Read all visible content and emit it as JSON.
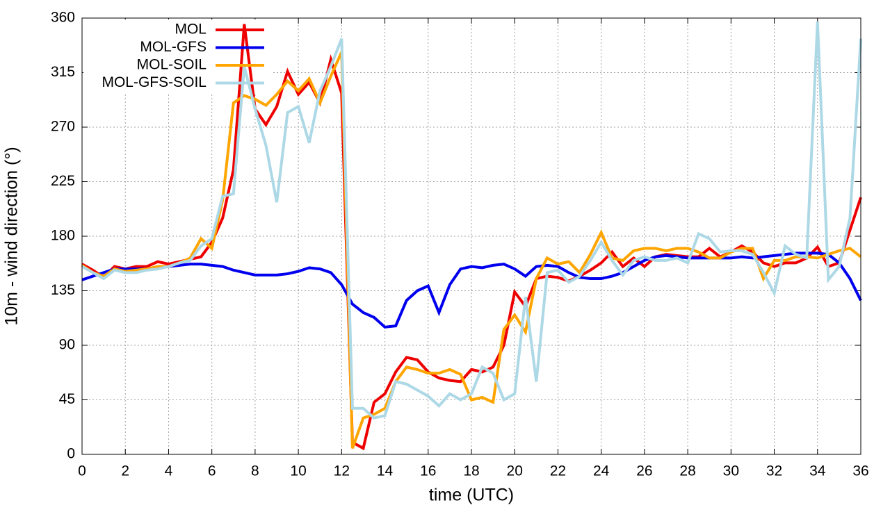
{
  "chart_data": {
    "type": "line",
    "xlabel": "time (UTC)",
    "ylabel": "10m - wind direction (°)",
    "x": [
      0,
      0.5,
      1,
      1.5,
      2,
      2.5,
      3,
      3.5,
      4,
      4.5,
      5,
      5.5,
      6,
      6.5,
      7,
      7.5,
      8,
      8.5,
      9,
      9.5,
      10,
      10.5,
      11,
      11.5,
      12,
      12.5,
      13,
      13.5,
      14,
      14.5,
      15,
      15.5,
      16,
      16.5,
      17,
      17.5,
      18,
      18.5,
      19,
      19.5,
      20,
      20.5,
      21,
      21.5,
      22,
      22.5,
      23,
      23.5,
      24,
      24.5,
      25,
      25.5,
      26,
      26.5,
      27,
      27.5,
      28,
      28.5,
      29,
      29.5,
      30,
      30.5,
      31,
      31.5,
      32,
      32.5,
      33,
      33.5,
      34,
      34.5,
      35,
      35.5,
      36
    ],
    "series": [
      {
        "name": "MOL",
        "color": "#ee0000",
        "values": [
          157,
          152,
          146,
          155,
          153,
          155,
          155,
          159,
          157,
          159,
          161,
          163,
          175,
          195,
          235,
          355,
          285,
          272,
          287,
          316,
          297,
          307,
          290,
          326,
          298,
          10,
          5,
          43,
          50,
          68,
          80,
          78,
          68,
          63,
          61,
          60,
          70,
          68,
          72,
          90,
          134,
          122,
          145,
          147,
          146,
          143,
          147,
          152,
          158,
          167,
          155,
          162,
          155,
          163,
          165,
          164,
          163,
          163,
          170,
          163,
          167,
          172,
          167,
          158,
          155,
          158,
          158,
          162,
          171,
          155,
          158,
          185,
          212
        ]
      },
      {
        "name": "MOL-GFS",
        "color": "#0000ee",
        "values": [
          144,
          147,
          150,
          153,
          153,
          153,
          153,
          154,
          155,
          156,
          157,
          157,
          156,
          155,
          152,
          150,
          148,
          148,
          148,
          149,
          151,
          154,
          153,
          150,
          140,
          124,
          117,
          113,
          105,
          106,
          127,
          135,
          139,
          117,
          140,
          153,
          155,
          154,
          156,
          157,
          153,
          147,
          155,
          156,
          155,
          150,
          146,
          145,
          145,
          147,
          150,
          155,
          160,
          163,
          164,
          163,
          162,
          162,
          162,
          162,
          162,
          163,
          162,
          163,
          164,
          165,
          166,
          166,
          166,
          165,
          158,
          145,
          127
        ]
      },
      {
        "name": "MOL-SOIL",
        "color": "#ffa500",
        "values": [
          156,
          150,
          147,
          153,
          151,
          152,
          153,
          155,
          155,
          158,
          162,
          178,
          170,
          210,
          290,
          296,
          293,
          288,
          297,
          308,
          300,
          310,
          290,
          312,
          332,
          5,
          30,
          33,
          38,
          60,
          72,
          70,
          67,
          67,
          70,
          66,
          45,
          47,
          43,
          103,
          115,
          101,
          145,
          162,
          157,
          159,
          150,
          165,
          183,
          162,
          160,
          168,
          170,
          170,
          168,
          170,
          170,
          167,
          162,
          162,
          167,
          170,
          170,
          145,
          160,
          160,
          163,
          163,
          162,
          165,
          168,
          170,
          163
        ]
      },
      {
        "name": "MOL-GFS-SOIL",
        "color": "#add8e6",
        "values": [
          155,
          150,
          145,
          152,
          150,
          150,
          152,
          153,
          155,
          158,
          160,
          172,
          178,
          213,
          215,
          320,
          285,
          255,
          208,
          282,
          287,
          257,
          300,
          320,
          343,
          38,
          38,
          30,
          32,
          60,
          58,
          53,
          48,
          40,
          50,
          45,
          50,
          72,
          67,
          45,
          50,
          130,
          60,
          150,
          152,
          142,
          147,
          160,
          175,
          160,
          148,
          160,
          163,
          160,
          160,
          162,
          158,
          182,
          178,
          167,
          168,
          168,
          165,
          150,
          133,
          172,
          165,
          162,
          357,
          144,
          155,
          195,
          343
        ]
      }
    ],
    "xlim": [
      0,
      36
    ],
    "xticks": [
      0,
      2,
      4,
      6,
      8,
      10,
      12,
      14,
      16,
      18,
      20,
      22,
      24,
      26,
      28,
      30,
      32,
      34,
      36
    ],
    "ylim": [
      0,
      360
    ],
    "yticks": [
      0,
      45,
      90,
      135,
      180,
      225,
      270,
      315,
      360
    ],
    "grid": true,
    "legend": "upper left"
  }
}
